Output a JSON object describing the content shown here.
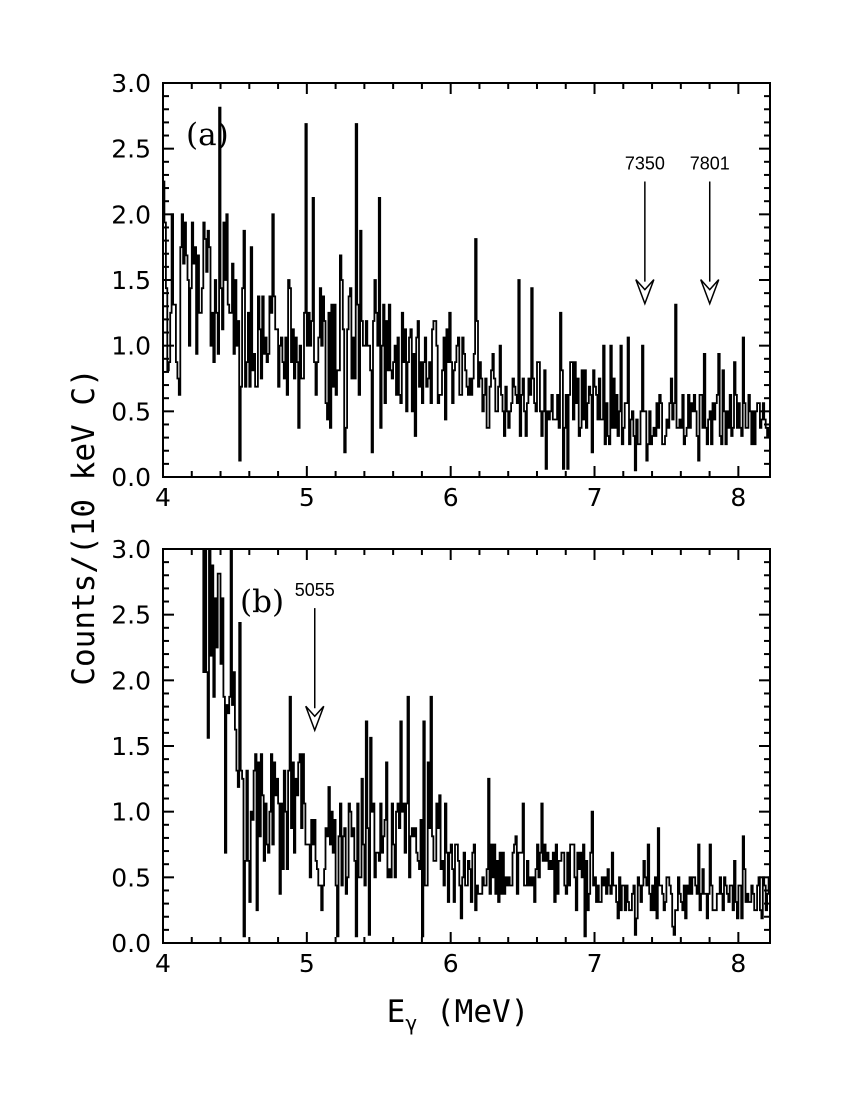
{
  "chart_data": [
    {
      "type": "histogram",
      "panel_label": "(a)",
      "xlabel": "E",
      "xlabel_sub": "γ",
      "xlabel_unit": " (MeV)",
      "ylabel": "Counts/(10 keV C)",
      "xlim": [
        4.0,
        8.22
      ],
      "ylim": [
        0.0,
        3.0
      ],
      "xticks": [
        4,
        5,
        6,
        7,
        8
      ],
      "yticks": [
        0.0,
        0.5,
        1.0,
        1.5,
        2.0,
        2.5,
        3.0
      ],
      "ytick_labels": [
        "0.0",
        "0.5",
        "1.0",
        "1.5",
        "2.0",
        "2.5",
        "3.0"
      ],
      "bin_width_MeV": 0.01,
      "annotations": [
        {
          "label": "7350",
          "energy": 7.35,
          "arrow_tip_y": 1.32,
          "arrow_tail_y": 2.25
        },
        {
          "label": "7801",
          "energy": 7.801,
          "arrow_tip_y": 1.32,
          "arrow_tail_y": 2.25
        }
      ],
      "counts_level": [
        {
          "from": 4.0,
          "to": 4.5,
          "mean": 1.4
        },
        {
          "from": 4.5,
          "to": 5.5,
          "mean": 1.05
        },
        {
          "from": 5.5,
          "to": 6.2,
          "mean": 0.9
        },
        {
          "from": 6.2,
          "to": 7.0,
          "mean": 0.6
        },
        {
          "from": 7.0,
          "to": 8.22,
          "mean": 0.45
        }
      ]
    },
    {
      "type": "histogram",
      "panel_label": "(b)",
      "xlabel": "E",
      "xlabel_sub": "γ",
      "xlabel_unit": " (MeV)",
      "ylabel": "Counts/(10 keV C)",
      "xlim": [
        4.0,
        8.22
      ],
      "ylim": [
        0.0,
        3.0
      ],
      "xticks": [
        4,
        5,
        6,
        7,
        8
      ],
      "yticks": [
        0.0,
        0.5,
        1.0,
        1.5,
        2.0,
        2.5,
        3.0
      ],
      "ytick_labels": [
        "0.0",
        "0.5",
        "1.0",
        "1.5",
        "2.0",
        "2.5",
        "3.0"
      ],
      "bin_width_MeV": 0.01,
      "annotations": [
        {
          "label": "5055",
          "energy": 5.055,
          "arrow_tip_y": 1.62,
          "arrow_tail_y": 2.55
        }
      ],
      "counts_level": [
        {
          "from": 4.2,
          "to": 4.3,
          "mean": 2.9
        },
        {
          "from": 4.3,
          "to": 4.5,
          "mean": 2.0
        },
        {
          "from": 4.5,
          "to": 5.0,
          "mean": 1.0
        },
        {
          "from": 5.0,
          "to": 6.0,
          "mean": 0.75
        },
        {
          "from": 6.0,
          "to": 7.0,
          "mean": 0.55
        },
        {
          "from": 7.0,
          "to": 8.22,
          "mean": 0.35
        }
      ]
    }
  ]
}
